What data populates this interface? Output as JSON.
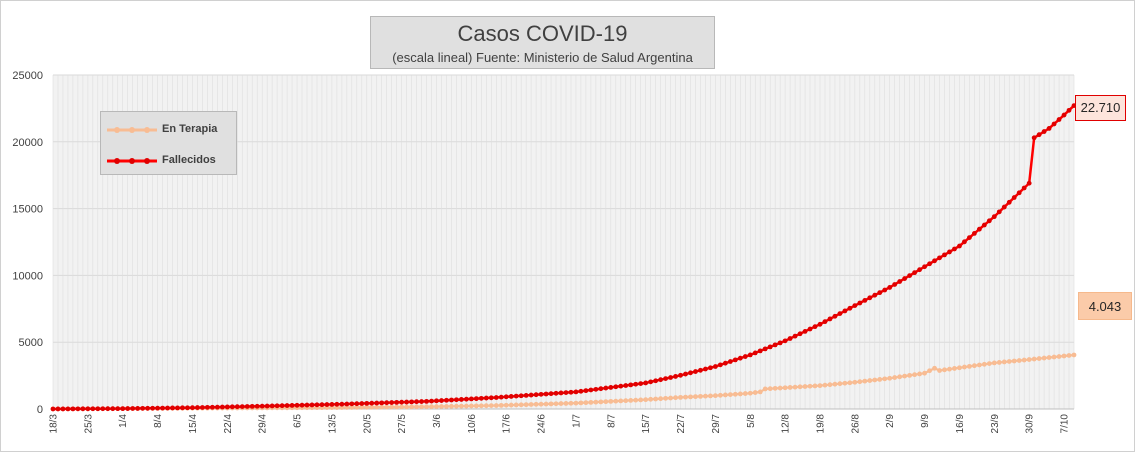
{
  "chart_data": {
    "type": "line",
    "title": "Casos COVID-19",
    "subtitle": "(escala lineal) Fuente: Ministerio de Salud Argentina",
    "ylim": [
      0,
      25000
    ],
    "yticks": [
      0,
      5000,
      10000,
      15000,
      20000,
      25000
    ],
    "ytick_labels": [
      "0",
      "5000",
      "10000",
      "15000",
      "20000",
      "25000"
    ],
    "x_start": "2020-03-18",
    "x_end": "2020-10-09",
    "x_tick_labels": [
      "18/3",
      "25/3",
      "1/4",
      "8/4",
      "15/4",
      "22/4",
      "29/4",
      "6/5",
      "13/5",
      "20/5",
      "27/5",
      "3/6",
      "10/6",
      "17/6",
      "24/6",
      "1/7",
      "8/7",
      "15/7",
      "22/7",
      "29/7",
      "5/8",
      "12/8",
      "19/8",
      "26/8",
      "2/9",
      "9/9",
      "16/9",
      "23/9",
      "30/9",
      "7/10"
    ],
    "grid": true,
    "legend_position": "top-left",
    "series": [
      {
        "name": "En Terapia",
        "color": "#f8bc93",
        "points": [
          [
            "2020-03-18",
            5
          ],
          [
            "2020-04-01",
            30
          ],
          [
            "2020-04-15",
            60
          ],
          [
            "2020-05-01",
            85
          ],
          [
            "2020-05-15",
            110
          ],
          [
            "2020-06-01",
            170
          ],
          [
            "2020-06-15",
            260
          ],
          [
            "2020-07-01",
            440
          ],
          [
            "2020-07-15",
            700
          ],
          [
            "2020-07-22",
            870
          ],
          [
            "2020-07-29",
            1000
          ],
          [
            "2020-08-05",
            1180
          ],
          [
            "2020-08-07",
            1280
          ],
          [
            "2020-08-08",
            1500
          ],
          [
            "2020-08-19",
            1750
          ],
          [
            "2020-08-26",
            2000
          ],
          [
            "2020-09-02",
            2300
          ],
          [
            "2020-09-09",
            2680
          ],
          [
            "2020-09-11",
            3050
          ],
          [
            "2020-09-12",
            2880
          ],
          [
            "2020-09-23",
            3450
          ],
          [
            "2020-09-30",
            3700
          ],
          [
            "2020-10-09",
            4043
          ]
        ]
      },
      {
        "name": "Fallecidos",
        "color": "#ff0000",
        "points": [
          [
            "2020-03-18",
            2
          ],
          [
            "2020-04-01",
            28
          ],
          [
            "2020-04-15",
            98
          ],
          [
            "2020-05-01",
            230
          ],
          [
            "2020-05-15",
            360
          ],
          [
            "2020-06-01",
            570
          ],
          [
            "2020-06-15",
            860
          ],
          [
            "2020-07-01",
            1280
          ],
          [
            "2020-07-15",
            1950
          ],
          [
            "2020-07-22",
            2520
          ],
          [
            "2020-07-29",
            3180
          ],
          [
            "2020-08-05",
            4050
          ],
          [
            "2020-08-12",
            5100
          ],
          [
            "2020-08-19",
            6340
          ],
          [
            "2020-08-26",
            7740
          ],
          [
            "2020-09-02",
            9100
          ],
          [
            "2020-09-09",
            10650
          ],
          [
            "2020-09-16",
            12200
          ],
          [
            "2020-09-23",
            14400
          ],
          [
            "2020-09-30",
            16900
          ],
          [
            "2020-10-01",
            20300
          ],
          [
            "2020-10-04",
            21000
          ],
          [
            "2020-10-07",
            22000
          ],
          [
            "2020-10-09",
            22710
          ]
        ]
      }
    ],
    "annotations": [
      {
        "series": "Fallecidos",
        "label": "22.710"
      },
      {
        "series": "En Terapia",
        "label": "4.043"
      }
    ]
  }
}
